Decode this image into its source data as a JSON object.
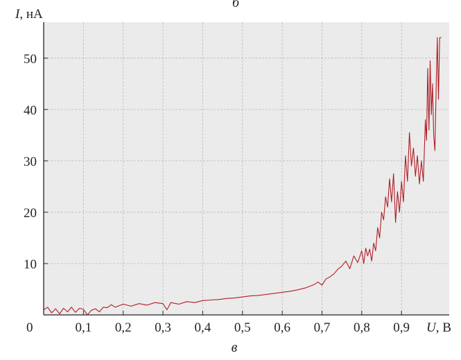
{
  "chart_data": {
    "type": "line",
    "top_caption": "б",
    "bottom_caption": "в",
    "xlabel_var": "U",
    "xlabel_unit": ", В",
    "ylabel_var": "I",
    "ylabel_unit": ", нА",
    "origin_label": "0",
    "xlim": [
      0,
      1.02
    ],
    "ylim": [
      0,
      57
    ],
    "x_ticks": [
      {
        "value": 0.1,
        "label": "0,1"
      },
      {
        "value": 0.2,
        "label": "0,2"
      },
      {
        "value": 0.3,
        "label": "0,3"
      },
      {
        "value": 0.4,
        "label": "0,4"
      },
      {
        "value": 0.5,
        "label": "0,5"
      },
      {
        "value": 0.6,
        "label": "0,6"
      },
      {
        "value": 0.7,
        "label": "0,7"
      },
      {
        "value": 0.8,
        "label": "0,8"
      },
      {
        "value": 0.9,
        "label": "0,9"
      }
    ],
    "y_ticks": [
      {
        "value": 10,
        "label": "10"
      },
      {
        "value": 20,
        "label": "20"
      },
      {
        "value": 30,
        "label": "30"
      },
      {
        "value": 40,
        "label": "40"
      },
      {
        "value": 50,
        "label": "50"
      }
    ],
    "grid": true,
    "colors": {
      "line": "#b01c24",
      "plot_bg": "#ebebeb",
      "grid": "#b9b9b9",
      "axis": "#222222"
    },
    "series": [
      {
        "points": [
          [
            0.0,
            1.0
          ],
          [
            0.01,
            1.5
          ],
          [
            0.02,
            0.4
          ],
          [
            0.03,
            1.2
          ],
          [
            0.04,
            0.2
          ],
          [
            0.05,
            1.3
          ],
          [
            0.06,
            0.6
          ],
          [
            0.07,
            1.5
          ],
          [
            0.08,
            0.5
          ],
          [
            0.09,
            1.3
          ],
          [
            0.1,
            1.1
          ],
          [
            0.11,
            0.0
          ],
          [
            0.12,
            0.9
          ],
          [
            0.13,
            1.2
          ],
          [
            0.14,
            0.6
          ],
          [
            0.15,
            1.5
          ],
          [
            0.16,
            1.4
          ],
          [
            0.17,
            2.0
          ],
          [
            0.18,
            1.5
          ],
          [
            0.2,
            2.1
          ],
          [
            0.22,
            1.7
          ],
          [
            0.24,
            2.2
          ],
          [
            0.26,
            1.9
          ],
          [
            0.28,
            2.4
          ],
          [
            0.3,
            2.2
          ],
          [
            0.31,
            1.0
          ],
          [
            0.32,
            2.4
          ],
          [
            0.34,
            2.1
          ],
          [
            0.36,
            2.6
          ],
          [
            0.38,
            2.4
          ],
          [
            0.4,
            2.8
          ],
          [
            0.42,
            2.9
          ],
          [
            0.44,
            3.0
          ],
          [
            0.46,
            3.2
          ],
          [
            0.48,
            3.3
          ],
          [
            0.5,
            3.5
          ],
          [
            0.52,
            3.7
          ],
          [
            0.54,
            3.8
          ],
          [
            0.56,
            4.0
          ],
          [
            0.58,
            4.2
          ],
          [
            0.6,
            4.4
          ],
          [
            0.62,
            4.6
          ],
          [
            0.64,
            4.9
          ],
          [
            0.66,
            5.3
          ],
          [
            0.68,
            5.9
          ],
          [
            0.69,
            6.4
          ],
          [
            0.7,
            5.8
          ],
          [
            0.71,
            7.0
          ],
          [
            0.72,
            7.4
          ],
          [
            0.73,
            8.0
          ],
          [
            0.74,
            8.9
          ],
          [
            0.75,
            9.5
          ],
          [
            0.76,
            10.5
          ],
          [
            0.77,
            9.0
          ],
          [
            0.78,
            11.5
          ],
          [
            0.79,
            10.2
          ],
          [
            0.8,
            12.5
          ],
          [
            0.805,
            10.0
          ],
          [
            0.81,
            13.0
          ],
          [
            0.815,
            11.5
          ],
          [
            0.82,
            12.8
          ],
          [
            0.825,
            10.5
          ],
          [
            0.83,
            14.0
          ],
          [
            0.835,
            12.5
          ],
          [
            0.84,
            17.0
          ],
          [
            0.845,
            15.0
          ],
          [
            0.85,
            20.0
          ],
          [
            0.855,
            18.5
          ],
          [
            0.86,
            23.0
          ],
          [
            0.865,
            21.0
          ],
          [
            0.87,
            26.5
          ],
          [
            0.875,
            22.0
          ],
          [
            0.88,
            27.5
          ],
          [
            0.885,
            18.0
          ],
          [
            0.89,
            24.0
          ],
          [
            0.895,
            20.0
          ],
          [
            0.9,
            26.0
          ],
          [
            0.905,
            22.0
          ],
          [
            0.91,
            31.0
          ],
          [
            0.915,
            26.0
          ],
          [
            0.92,
            35.5
          ],
          [
            0.925,
            29.0
          ],
          [
            0.93,
            32.5
          ],
          [
            0.935,
            27.0
          ],
          [
            0.94,
            31.0
          ],
          [
            0.945,
            25.5
          ],
          [
            0.95,
            30.0
          ],
          [
            0.955,
            26.0
          ],
          [
            0.96,
            38.0
          ],
          [
            0.963,
            34.0
          ],
          [
            0.966,
            48.0
          ],
          [
            0.969,
            36.0
          ],
          [
            0.972,
            49.5
          ],
          [
            0.975,
            39.0
          ],
          [
            0.978,
            45.0
          ],
          [
            0.981,
            35.0
          ],
          [
            0.984,
            32.0
          ],
          [
            0.987,
            44.0
          ],
          [
            0.99,
            54.0
          ],
          [
            0.993,
            42.0
          ],
          [
            0.996,
            54.0
          ],
          [
            1.0,
            54.0
          ]
        ]
      }
    ]
  }
}
